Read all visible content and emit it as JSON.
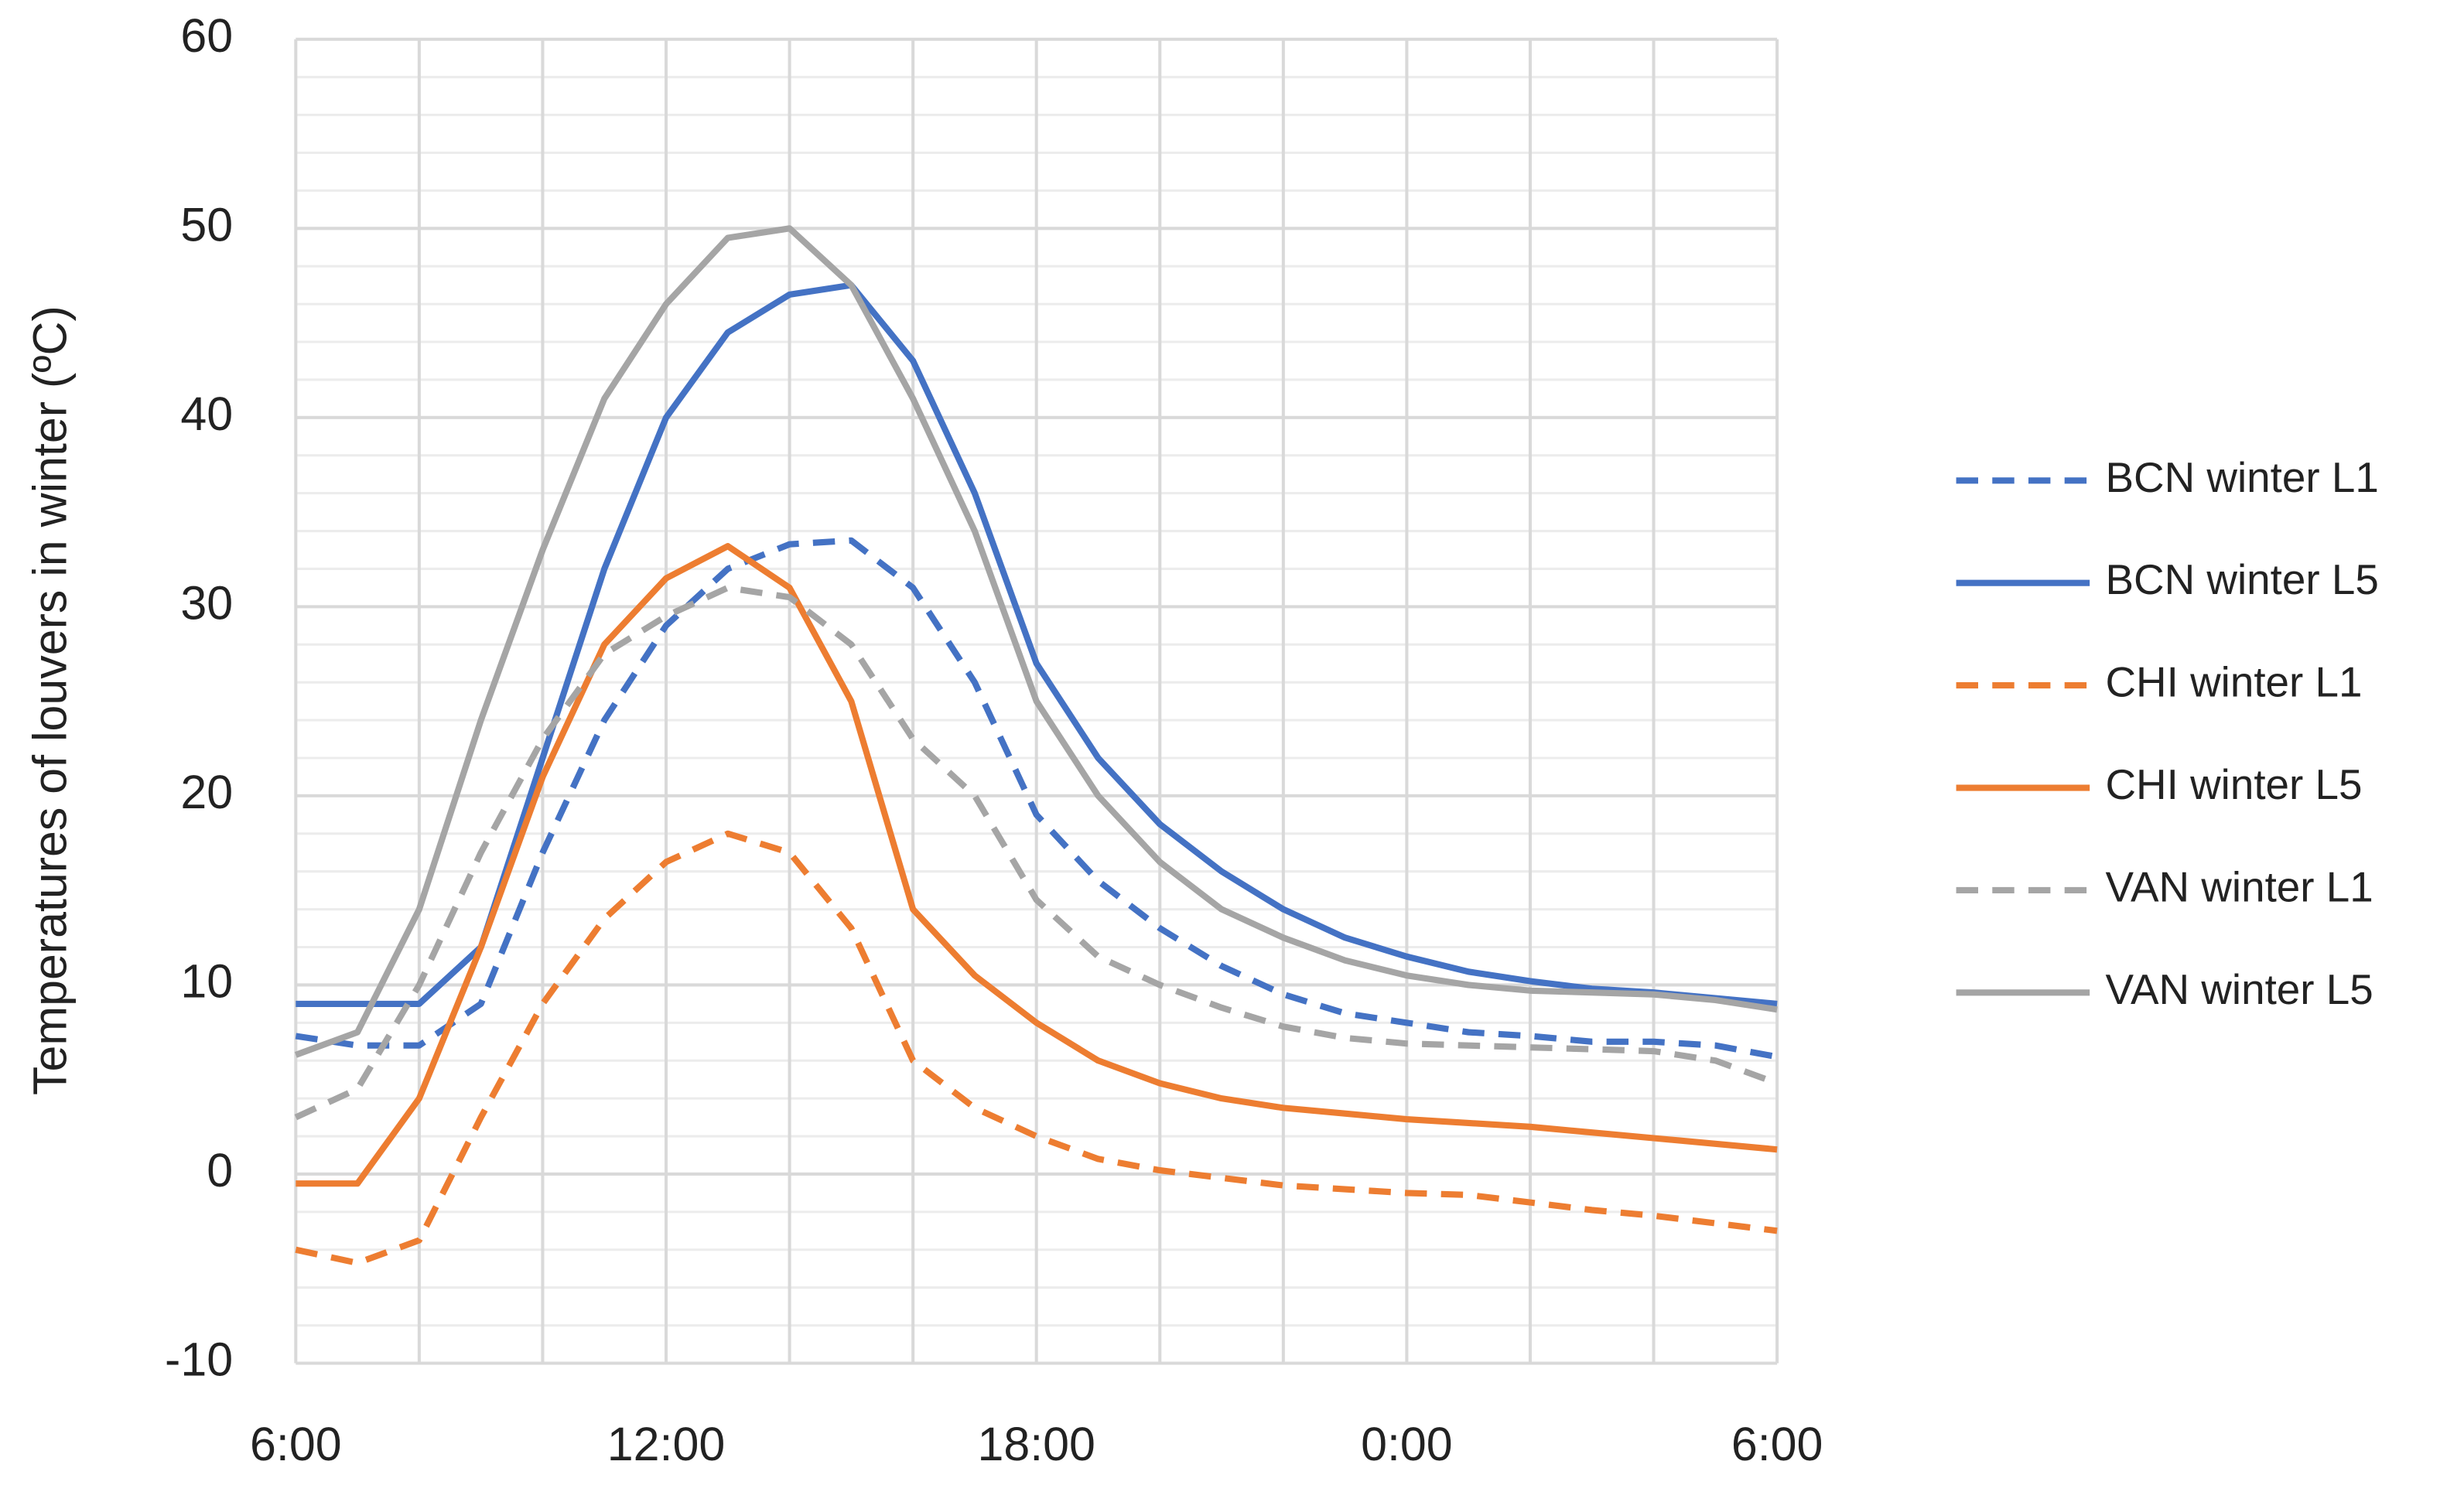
{
  "chart_data": {
    "type": "line",
    "y_label": "Temperatures of louvers in winter (ºC)",
    "x": [
      6,
      7,
      8,
      9,
      10,
      11,
      12,
      13,
      14,
      15,
      16,
      17,
      18,
      19,
      20,
      21,
      22,
      23,
      24,
      25,
      26,
      27,
      28,
      29,
      30
    ],
    "series": [
      {
        "name": "BCN winter L1",
        "color": "#4472c4",
        "dash": true,
        "values": [
          7.3,
          6.8,
          6.8,
          9,
          17,
          24,
          29,
          32,
          33.3,
          33.5,
          31,
          26,
          19,
          15.5,
          13,
          11,
          9.5,
          8.5,
          8,
          7.5,
          7.3,
          7,
          7,
          6.8,
          6.2
        ]
      },
      {
        "name": "BCN winter L5",
        "color": "#4472c4",
        "dash": false,
        "values": [
          9,
          9,
          9,
          12,
          22,
          32,
          40,
          44.5,
          46.5,
          47,
          43,
          36,
          27,
          22,
          18.5,
          16,
          14,
          12.5,
          11.5,
          10.7,
          10.2,
          9.8,
          9.6,
          9.3,
          9
        ]
      },
      {
        "name": "CHI winter L1",
        "color": "#ed7d31",
        "dash": true,
        "values": [
          -4,
          -4.7,
          -3.5,
          3,
          9,
          13.5,
          16.5,
          18,
          17,
          13,
          6,
          3.5,
          2,
          0.8,
          0.2,
          -0.2,
          -0.6,
          -0.8,
          -1,
          -1.1,
          -1.5,
          -1.9,
          -2.2,
          -2.6,
          -3
        ]
      },
      {
        "name": "CHI winter L5",
        "color": "#ed7d31",
        "dash": false,
        "values": [
          -0.5,
          -0.5,
          4,
          12,
          21,
          28,
          31.5,
          33.2,
          31,
          25,
          14,
          10.5,
          8,
          6,
          4.8,
          4,
          3.5,
          3.2,
          2.9,
          2.7,
          2.5,
          2.2,
          1.9,
          1.6,
          1.3
        ]
      },
      {
        "name": "VAN winter L1",
        "color": "#a5a5a5",
        "dash": true,
        "values": [
          3,
          4.5,
          10,
          17,
          23,
          27.5,
          29.5,
          31,
          30.5,
          28,
          23,
          20,
          14.5,
          11.5,
          10,
          8.8,
          7.8,
          7.2,
          6.9,
          6.8,
          6.7,
          6.6,
          6.5,
          6,
          4.8
        ]
      },
      {
        "name": "VAN winter L5",
        "color": "#a5a5a5",
        "dash": false,
        "values": [
          6.3,
          7.5,
          14,
          24,
          33,
          41,
          46,
          49.5,
          50,
          47,
          41,
          34,
          25,
          20,
          16.5,
          14,
          12.5,
          11.3,
          10.5,
          10,
          9.7,
          9.6,
          9.5,
          9.2,
          8.7
        ]
      }
    ],
    "xlim": [
      6,
      30
    ],
    "xticks": [
      {
        "value": 6,
        "label": "6:00"
      },
      {
        "value": 12,
        "label": "12:00"
      },
      {
        "value": 18,
        "label": "18:00"
      },
      {
        "value": 24,
        "label": "0:00"
      },
      {
        "value": 30,
        "label": "6:00"
      }
    ],
    "xminor": [
      8,
      10,
      14,
      16,
      20,
      22,
      26,
      28
    ],
    "ylim": [
      -10,
      60
    ],
    "yticks": [
      -10,
      0,
      10,
      20,
      30,
      40,
      50,
      60
    ],
    "yminor": [
      -8,
      -6,
      -4,
      -2,
      2,
      4,
      6,
      8,
      12,
      14,
      16,
      18,
      22,
      24,
      26,
      28,
      32,
      34,
      36,
      38,
      42,
      44,
      46,
      48,
      52,
      54,
      56,
      58
    ],
    "grid": true,
    "legend": "right"
  }
}
